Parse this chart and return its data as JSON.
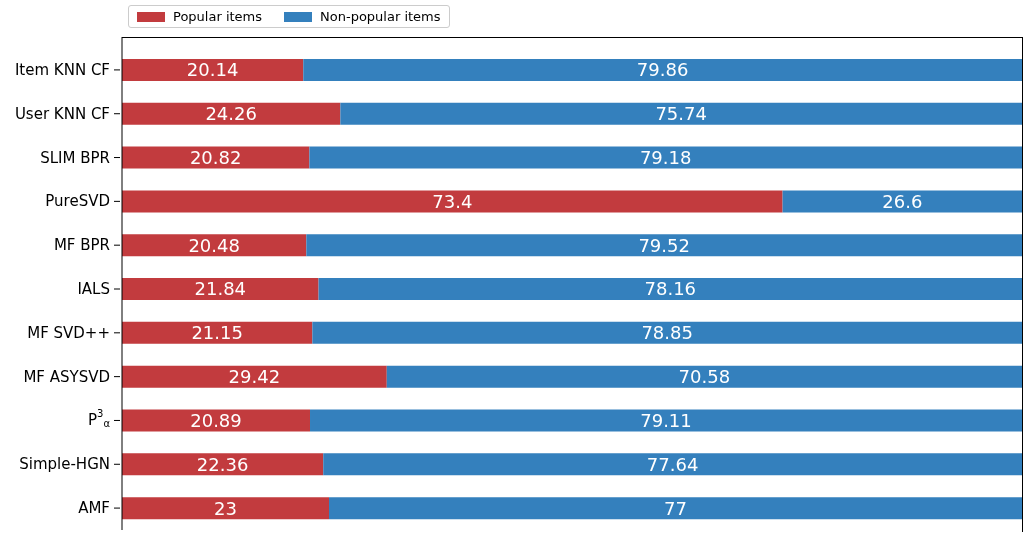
{
  "chart_data": {
    "type": "bar",
    "orientation": "horizontal",
    "stacked": true,
    "data_labels": true,
    "legend": "top left",
    "tick_labels": "y",
    "xlim": [
      0,
      100
    ],
    "categories": [
      "Item KNN CF",
      "User KNN CF",
      "SLIM BPR",
      "PureSVD",
      "MF BPR",
      "IALS",
      "MF SVD++",
      "MF ASYSVD",
      "P$^{3}$$_{α}$",
      "Simple-HGN",
      "AMF"
    ],
    "series": [
      {
        "name": "Popular items",
        "color": "#c23b3e",
        "values": [
          20.14,
          24.26,
          20.82,
          73.4,
          20.48,
          21.84,
          21.15,
          29.42,
          20.89,
          22.36,
          23
        ]
      },
      {
        "name": "Non-popular items",
        "color": "#3480bd",
        "values": [
          79.86,
          75.74,
          79.18,
          26.6,
          79.52,
          78.16,
          78.85,
          70.58,
          79.11,
          77.64,
          77
        ]
      }
    ]
  }
}
